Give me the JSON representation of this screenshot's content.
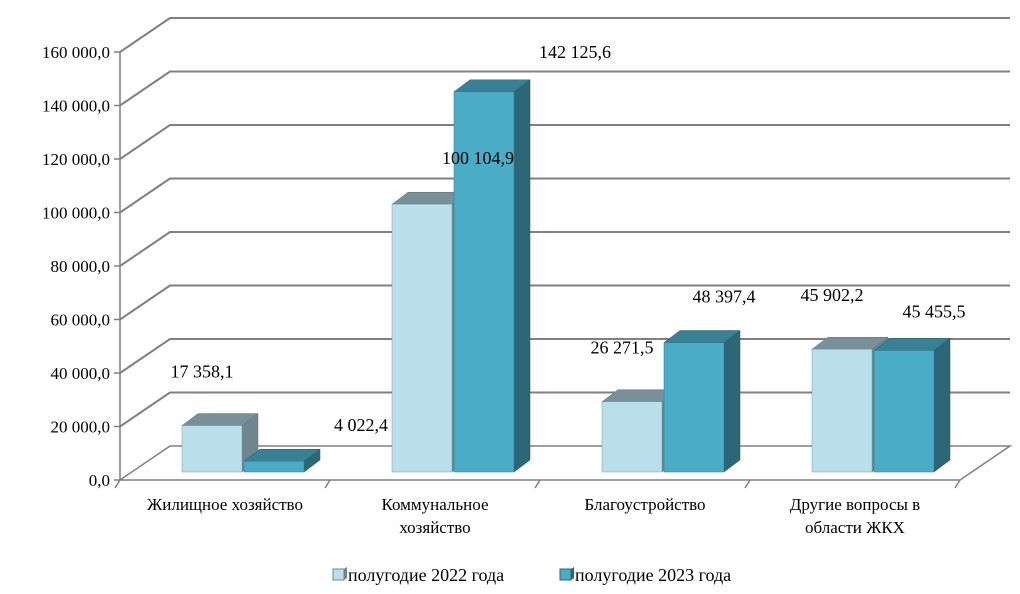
{
  "chart_data": {
    "type": "bar",
    "title": "",
    "xlabel": "",
    "ylabel": "",
    "categories": [
      "Жилищное хозяйство",
      "Коммунальное хозяйство",
      "Благоустройство",
      "Другие вопросы в области ЖКХ"
    ],
    "category_labels": [
      [
        "Жилищное хозяйство"
      ],
      [
        "Коммунальное",
        "хозяйство"
      ],
      [
        "Благоустройство"
      ],
      [
        "Другие вопросы в",
        "области ЖКХ"
      ]
    ],
    "series": [
      {
        "name": "полугодие 2022 года",
        "values": [
          17358.1,
          100104.9,
          26271.5,
          45902.2
        ],
        "labels": [
          "17 358,1",
          "100 104,9",
          "26 271,5",
          "45 902,2"
        ],
        "color": "#b8dfea"
      },
      {
        "name": "полугодие 2023 года",
        "values": [
          4022.4,
          142125.6,
          48397.4,
          45455.5
        ],
        "labels": [
          "4 022,4",
          "142 125,6",
          "48 397,4",
          "45 455,5"
        ],
        "color": "#4aacc6"
      }
    ],
    "ylim": [
      0,
      160000
    ],
    "yticks": [
      0,
      20000,
      40000,
      60000,
      80000,
      100000,
      120000,
      140000,
      160000
    ],
    "ytick_labels": [
      "0,0",
      "20 000,0",
      "40 000,0",
      "60 000,0",
      "80 000,0",
      "100 000,0",
      "120 000,0",
      "140 000,0",
      "160 000,0"
    ],
    "grid": true,
    "legend_position": "bottom",
    "style": "3d-clustered-column"
  }
}
